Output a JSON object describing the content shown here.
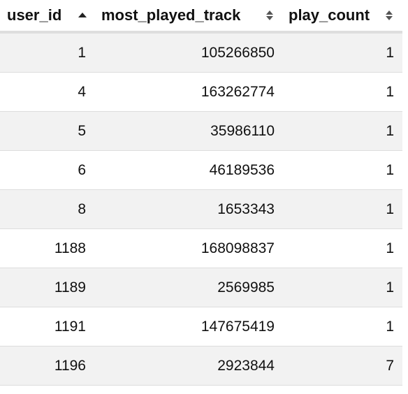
{
  "table": {
    "headers": {
      "user_id": "user_id",
      "most_played_track": "most_played_track",
      "play_count": "play_count"
    },
    "sort": {
      "column": "user_id",
      "direction": "ascending"
    },
    "colors": {
      "row_stripe": "#f2f2f2",
      "header_border": "#dedede",
      "sort_icon_active": "#222222",
      "sort_icon_inactive": "#555555"
    },
    "rows": [
      {
        "user_id": "1",
        "most_played_track": "105266850",
        "play_count": "1"
      },
      {
        "user_id": "4",
        "most_played_track": "163262774",
        "play_count": "1"
      },
      {
        "user_id": "5",
        "most_played_track": "35986110",
        "play_count": "1"
      },
      {
        "user_id": "6",
        "most_played_track": "46189536",
        "play_count": "1"
      },
      {
        "user_id": "8",
        "most_played_track": "1653343",
        "play_count": "1"
      },
      {
        "user_id": "1188",
        "most_played_track": "168098837",
        "play_count": "1"
      },
      {
        "user_id": "1189",
        "most_played_track": "2569985",
        "play_count": "1"
      },
      {
        "user_id": "1191",
        "most_played_track": "147675419",
        "play_count": "1"
      },
      {
        "user_id": "1196",
        "most_played_track": "2923844",
        "play_count": "7"
      }
    ]
  }
}
